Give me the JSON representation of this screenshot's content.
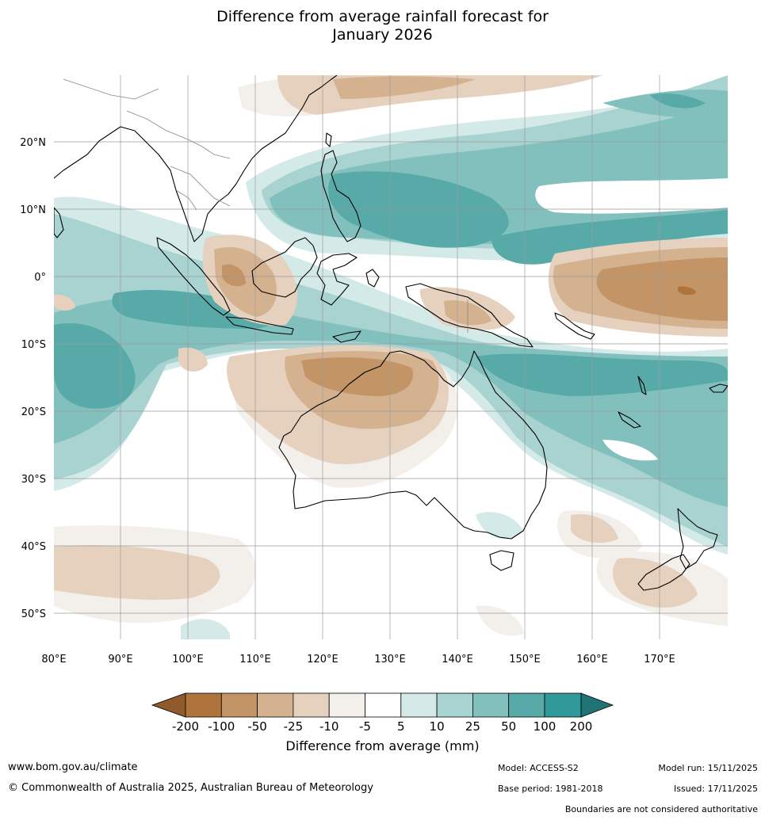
{
  "title_line1": "Difference from average rainfall forecast for",
  "title_line2": "January 2026",
  "lat_labels": [
    "20°N",
    "10°N",
    "0°",
    "10°S",
    "20°S",
    "30°S",
    "40°S",
    "50°S"
  ],
  "lon_labels": [
    "80°E",
    "90°E",
    "100°E",
    "110°E",
    "120°E",
    "130°E",
    "140°E",
    "150°E",
    "160°E",
    "170°E"
  ],
  "colorbar": {
    "title": "Difference from average (mm)",
    "ticks": [
      "-200",
      "-100",
      "-50",
      "-25",
      "-10",
      "-5",
      "5",
      "10",
      "25",
      "50",
      "100",
      "200"
    ],
    "colors": [
      "#8f5a2c",
      "#af743c",
      "#c29466",
      "#d4b290",
      "#e6d1bf",
      "#f3efea",
      "#ffffff",
      "#d4eae8",
      "#a9d3d1",
      "#82c0be",
      "#58aaa9",
      "#32999a",
      "#1f7374"
    ]
  },
  "footer": {
    "website": "www.bom.gov.au/climate",
    "copyright": "© Commonwealth of Australia 2025, Australian Bureau of Meteorology",
    "model": "Model: ACCESS-S2",
    "base_period": "Base period: 1981-2018",
    "model_run": "Model run: 15/11/2025",
    "issued": "Issued: 17/11/2025",
    "boundaries_note": "Boundaries are not considered authoritative"
  }
}
